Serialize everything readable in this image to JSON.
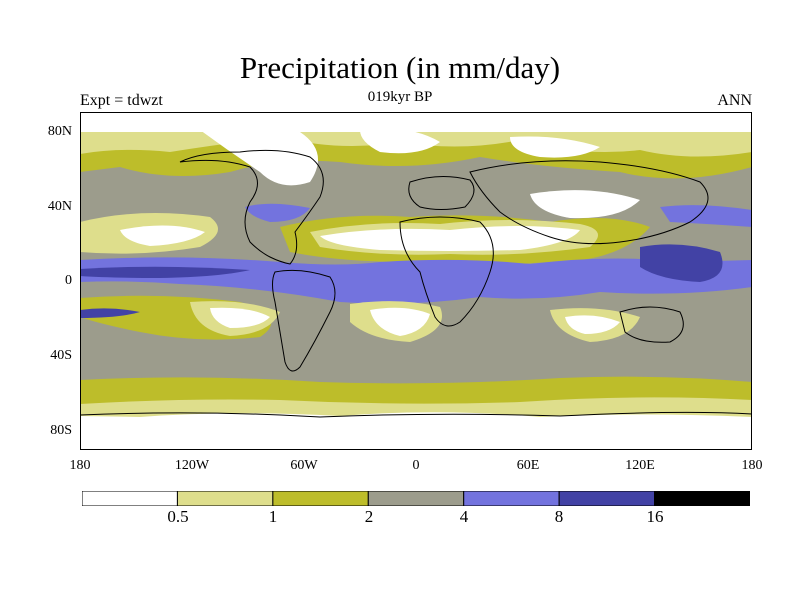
{
  "title": "Precipitation (in mm/day)",
  "subtitle_left": "Expt = tdwzt",
  "subtitle_center": "019kyr BP",
  "subtitle_right": "ANN",
  "lat_labels": [
    "80N",
    "40N",
    "0",
    "40S",
    "80S"
  ],
  "lon_labels": [
    "180",
    "120W",
    "60W",
    "0",
    "60E",
    "120E",
    "180"
  ],
  "colorbar": {
    "colors": [
      "#ffffff",
      "#dede8c",
      "#bdbd2a",
      "#9c9c8c",
      "#7373de",
      "#4242a5",
      "#000000"
    ],
    "labels": [
      "0.5",
      "1",
      "2",
      "4",
      "8",
      "16"
    ]
  }
}
